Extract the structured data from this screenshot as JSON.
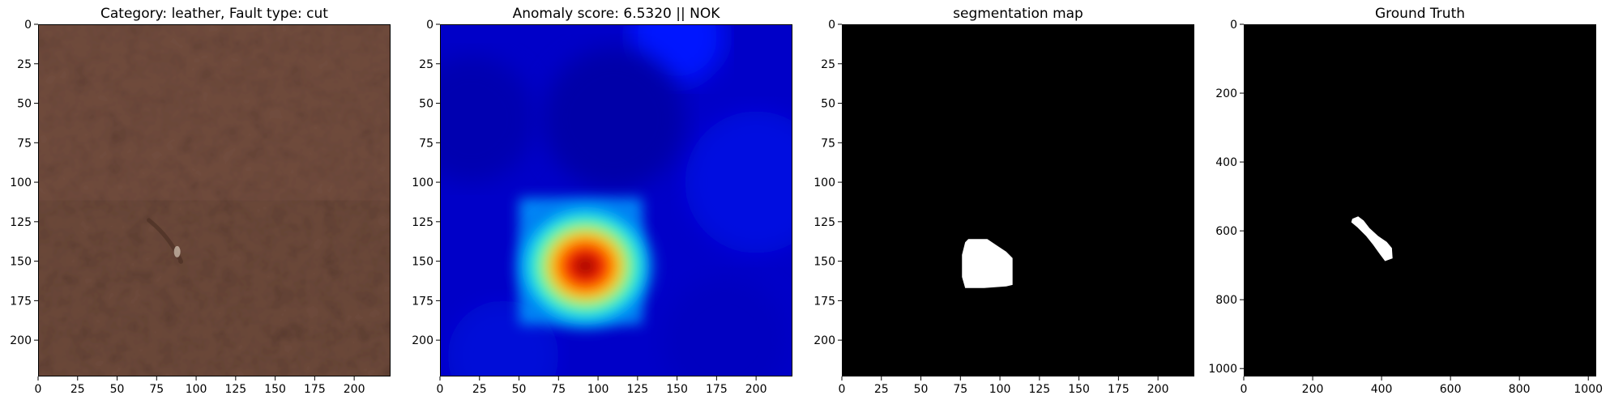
{
  "chart_data": [
    {
      "type": "image",
      "title": "Category: leather, Fault type: cut",
      "content": "leather texture photo with a small cut defect",
      "xlim": [
        0,
        223
      ],
      "ylim": [
        223,
        0
      ],
      "xticks": [
        0,
        25,
        50,
        75,
        100,
        125,
        150,
        175,
        200
      ],
      "yticks": [
        0,
        25,
        50,
        75,
        100,
        125,
        150,
        175,
        200
      ],
      "defect_center": [
        88,
        144
      ],
      "colors": {
        "base": "#6e4a3b",
        "dark": "#4e3226",
        "light": "#8a6050"
      }
    },
    {
      "type": "heatmap",
      "title": "Anomaly score: 6.5320 || NOK",
      "colormap": "jet",
      "xlim": [
        0,
        223
      ],
      "ylim": [
        223,
        0
      ],
      "xticks": [
        0,
        25,
        50,
        75,
        100,
        125,
        150,
        175,
        200
      ],
      "yticks": [
        0,
        25,
        50,
        75,
        100,
        125,
        150,
        175,
        200
      ],
      "hotspot_center": [
        92,
        153
      ],
      "hotspot_extent": {
        "x": [
          50,
          128
        ],
        "y": [
          110,
          190
        ]
      }
    },
    {
      "type": "heatmap",
      "title": "segmentation map",
      "colormap": "binary",
      "xlim": [
        0,
        223
      ],
      "ylim": [
        223,
        0
      ],
      "xticks": [
        0,
        25,
        50,
        75,
        100,
        125,
        150,
        175,
        200
      ],
      "yticks": [
        0,
        25,
        50,
        75,
        100,
        125,
        150,
        175,
        200
      ],
      "mask_outline": [
        [
          80,
          136
        ],
        [
          92,
          136
        ],
        [
          98,
          140
        ],
        [
          104,
          144
        ],
        [
          108,
          148
        ],
        [
          108,
          165
        ],
        [
          104,
          166
        ],
        [
          90,
          167
        ],
        [
          78,
          167
        ],
        [
          76,
          160
        ],
        [
          76,
          146
        ],
        [
          78,
          138
        ]
      ]
    },
    {
      "type": "heatmap",
      "title": "Ground Truth",
      "colormap": "binary",
      "xlim": [
        0,
        1023
      ],
      "ylim": [
        1023,
        0
      ],
      "xticks": [
        0,
        200,
        400,
        600,
        800,
        1000
      ],
      "yticks": [
        0,
        200,
        400,
        600,
        800,
        1000
      ],
      "mask_outline": [
        [
          315,
          565
        ],
        [
          332,
          558
        ],
        [
          348,
          570
        ],
        [
          365,
          592
        ],
        [
          390,
          615
        ],
        [
          415,
          632
        ],
        [
          430,
          650
        ],
        [
          432,
          680
        ],
        [
          410,
          688
        ],
        [
          395,
          668
        ],
        [
          375,
          640
        ],
        [
          355,
          615
        ],
        [
          330,
          590
        ],
        [
          312,
          575
        ]
      ]
    }
  ]
}
